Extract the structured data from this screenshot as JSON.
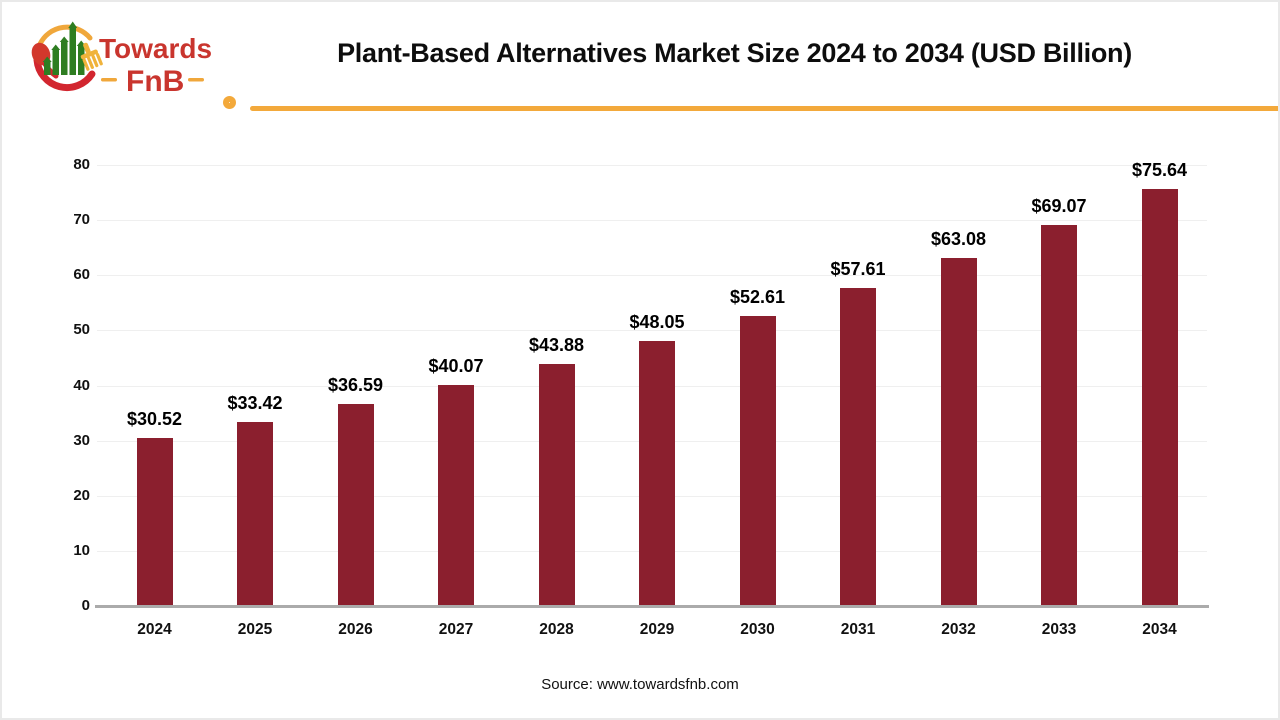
{
  "header": {
    "title": "Plant-Based Alternatives Market Size 2024 to 2034 (USD Billion)",
    "logo": {
      "brand_top": "Towards",
      "brand_bottom": "FnB"
    }
  },
  "chart_data": {
    "type": "bar",
    "title": "Plant-Based Alternatives Market Size 2024 to 2034 (USD Billion)",
    "categories": [
      "2024",
      "2025",
      "2026",
      "2027",
      "2028",
      "2029",
      "2030",
      "2031",
      "2032",
      "2033",
      "2034"
    ],
    "values": [
      30.52,
      33.42,
      36.59,
      40.07,
      43.88,
      48.05,
      52.61,
      57.61,
      63.08,
      69.07,
      75.64
    ],
    "value_labels": [
      "$30.52",
      "$33.42",
      "$36.59",
      "$40.07",
      "$43.88",
      "$48.05",
      "$52.61",
      "$57.61",
      "$63.08",
      "$69.07",
      "$75.64"
    ],
    "xlabel": "",
    "ylabel": "",
    "ylim": [
      0,
      80
    ],
    "ytick_step": 10,
    "yticks": [
      0,
      10,
      20,
      30,
      40,
      50,
      60,
      70,
      80
    ],
    "grid": true,
    "legend": false,
    "bar_color": "#8B1F2E"
  },
  "footer": {
    "source": "Source: www.towardsfnb.com"
  },
  "colors": {
    "accent_line": "#F3A93B",
    "bar": "#8B1F2E",
    "logo_red": "#C9352E",
    "logo_arc_red": "#D2262F",
    "logo_green": "#2E7D21",
    "logo_yellow": "#F0A73B"
  }
}
